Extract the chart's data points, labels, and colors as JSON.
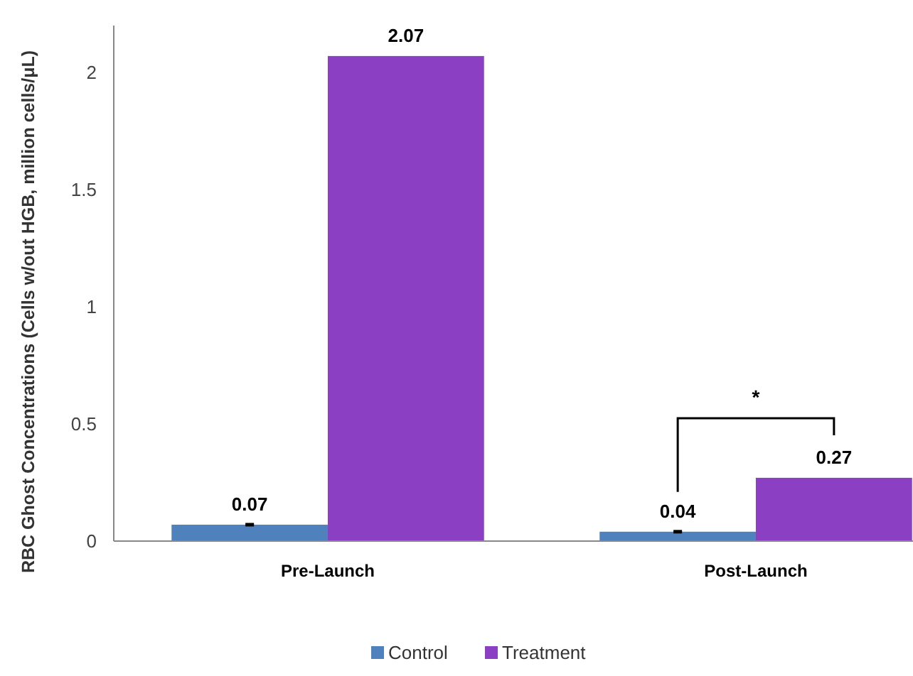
{
  "chart_data": {
    "type": "bar",
    "ylabel": "RBC Ghost Concentrations (Cells w/out HGB, million cells/μL)",
    "categories": [
      "Pre-Launch",
      "Post-Launch"
    ],
    "series": [
      {
        "name": "Control",
        "color": "#4f81bd",
        "values": [
          0.07,
          0.04
        ],
        "errors": [
          0.003,
          0.003
        ]
      },
      {
        "name": "Treatment",
        "color": "#8b3fc3",
        "values": [
          2.07,
          0.27
        ]
      }
    ],
    "ylim": [
      0,
      2.2
    ],
    "yticks": [
      0,
      0.5,
      1,
      1.5,
      2
    ],
    "data_labels": true,
    "legend": "bottom",
    "annotations": [
      "*"
    ]
  }
}
